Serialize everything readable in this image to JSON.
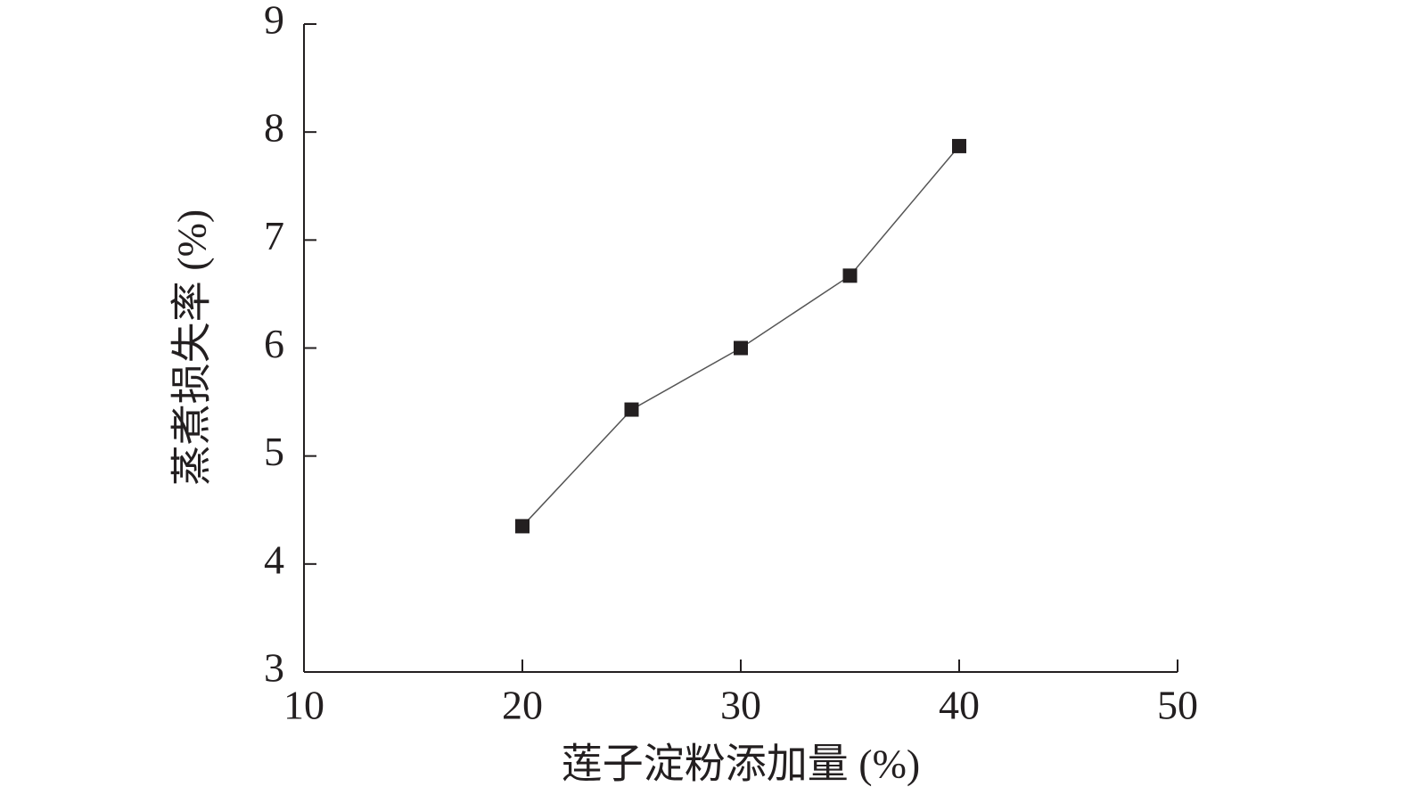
{
  "chart_data": {
    "type": "line",
    "x_label": "莲子淀粉添加量 (%)",
    "y_label": "蒸煮损失率 (%)",
    "x": [
      20,
      25,
      30,
      35,
      40
    ],
    "series": [
      {
        "color": "#231f20",
        "values": [
          4.35,
          5.43,
          6.0,
          6.67,
          7.87
        ]
      }
    ],
    "xlim": [
      10,
      50
    ],
    "xticks": [
      10,
      20,
      30,
      40,
      50
    ],
    "ylim": [
      3,
      9
    ],
    "yticks": [
      3,
      4,
      5,
      6,
      7,
      8,
      9
    ],
    "grid": false
  }
}
